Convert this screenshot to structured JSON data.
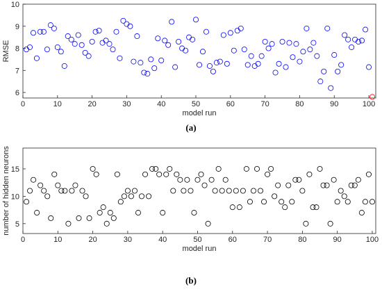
{
  "chart_data": [
    {
      "type": "scatter",
      "xlabel": "model run",
      "ylabel": "RMSE",
      "caption": "(a)",
      "xlim": [
        0,
        102
      ],
      "ylim": [
        5.75,
        10
      ],
      "xticks": [
        0,
        10,
        20,
        30,
        40,
        50,
        60,
        70,
        80,
        90,
        100
      ],
      "yticks": [
        6,
        7,
        8,
        9,
        10
      ],
      "series": [
        {
          "color": "#0000ff",
          "x": [
            1,
            2,
            3,
            4,
            5,
            6,
            7,
            8,
            9,
            10,
            11,
            12,
            13,
            14,
            15,
            16,
            17,
            18,
            19,
            20,
            21,
            22,
            23,
            24,
            25,
            26,
            27,
            28,
            29,
            30,
            31,
            32,
            33,
            34,
            35,
            36,
            37,
            38,
            39,
            40,
            41,
            42,
            43,
            44,
            45,
            46,
            47,
            48,
            49,
            50,
            51,
            52,
            53,
            54,
            55,
            56,
            57,
            58,
            59,
            60,
            61,
            62,
            63,
            64,
            65,
            66,
            67,
            68,
            69,
            70,
            71,
            72,
            73,
            74,
            75,
            76,
            77,
            78,
            79,
            80,
            81,
            82,
            83,
            84,
            85,
            86,
            87,
            88,
            89,
            90,
            91,
            92,
            93,
            94,
            95,
            96,
            97,
            98,
            99,
            100
          ],
          "values": [
            7.95,
            8.05,
            8.7,
            7.55,
            8.75,
            8.75,
            7.95,
            9.05,
            8.9,
            8.05,
            7.85,
            7.2,
            8.55,
            8.4,
            8.2,
            8.6,
            8.15,
            7.8,
            7.65,
            8.3,
            8.75,
            8.8,
            8.25,
            8.35,
            8.2,
            7.95,
            8.75,
            7.55,
            9.25,
            9.1,
            9.0,
            7.4,
            8.55,
            7.35,
            6.9,
            6.85,
            7.5,
            7.1,
            8.45,
            7.45,
            8.35,
            8.15,
            9.2,
            7.15,
            8.3,
            8.0,
            7.9,
            8.5,
            8.4,
            9.3,
            7.25,
            7.85,
            8.75,
            7.2,
            6.95,
            7.35,
            7.4,
            8.6,
            7.3,
            8.7,
            7.9,
            8.8,
            8.9,
            7.95,
            7.25,
            7.65,
            7.2,
            7.3,
            7.65,
            8.3,
            8.0,
            8.2,
            6.9,
            7.3,
            8.3,
            7.15,
            8.25,
            7.6,
            8.2,
            7.4,
            7.85,
            8.9,
            7.95,
            8.25,
            7.65,
            6.5,
            6.95,
            8.9,
            6.2,
            7.7,
            6.95,
            7.25,
            8.6,
            8.4,
            8.05,
            8.4,
            8.3,
            8.35,
            8.85,
            7.15
          ]
        },
        {
          "color": "#ff0000",
          "x": [
            101
          ],
          "values": [
            5.8
          ]
        }
      ]
    },
    {
      "type": "scatter",
      "xlabel": "model run",
      "ylabel": "number of hidden neurons",
      "caption": "(b)",
      "xlim": [
        0,
        101
      ],
      "ylim": [
        3.2,
        18.8
      ],
      "xticks": [
        0,
        10,
        20,
        30,
        40,
        50,
        60,
        70,
        80,
        90,
        100
      ],
      "yticks": [
        5,
        10,
        15
      ],
      "series": [
        {
          "color": "#000000",
          "x": [
            1,
            2,
            3,
            4,
            5,
            6,
            7,
            8,
            9,
            10,
            11,
            12,
            13,
            14,
            15,
            16,
            17,
            18,
            19,
            20,
            21,
            22,
            23,
            24,
            25,
            26,
            27,
            28,
            29,
            30,
            31,
            32,
            33,
            34,
            35,
            36,
            37,
            38,
            39,
            40,
            41,
            42,
            43,
            44,
            45,
            46,
            47,
            48,
            49,
            50,
            51,
            52,
            53,
            54,
            55,
            56,
            57,
            58,
            59,
            60,
            61,
            62,
            63,
            64,
            65,
            66,
            67,
            68,
            69,
            70,
            71,
            72,
            73,
            74,
            75,
            76,
            77,
            78,
            79,
            80,
            81,
            82,
            83,
            84,
            85,
            86,
            87,
            88,
            89,
            90,
            91,
            92,
            93,
            94,
            95,
            96,
            97,
            98,
            99,
            100
          ],
          "values": [
            9,
            11,
            13,
            7,
            12,
            11,
            10,
            6,
            14,
            12,
            11,
            11,
            5,
            11,
            12,
            6,
            11,
            10,
            6,
            15,
            14,
            7,
            8,
            5,
            7,
            6,
            14,
            9,
            10,
            11,
            10,
            11,
            7,
            10,
            14,
            10,
            15,
            15,
            14,
            7,
            14,
            15,
            11,
            14,
            13,
            11,
            13,
            11,
            7,
            13,
            14,
            12,
            5,
            13,
            11,
            15,
            11,
            13,
            11,
            8,
            11,
            8,
            11,
            15,
            9,
            11,
            15,
            11,
            9,
            14,
            15,
            10,
            12,
            9,
            8,
            12,
            9,
            13,
            13,
            11,
            5,
            14,
            8,
            8,
            15,
            12,
            12,
            5,
            13,
            9,
            11,
            10,
            9,
            12,
            12,
            13,
            7,
            9,
            14,
            9
          ]
        }
      ]
    }
  ]
}
